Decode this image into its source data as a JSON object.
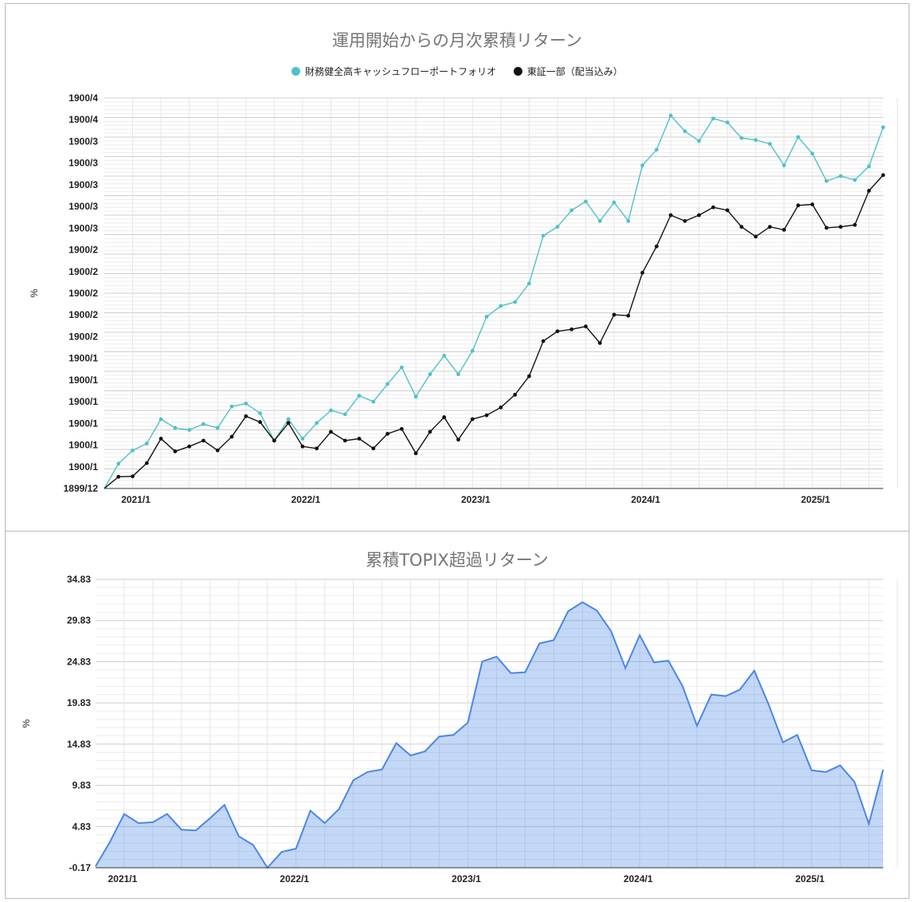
{
  "chart_data": [
    {
      "type": "line",
      "title": "運用開始からの月次累積リターン",
      "ylabel": "%",
      "y_tick_labels": [
        "1899/12",
        "1900/1",
        "1900/1",
        "1900/1",
        "1900/1",
        "1900/1",
        "1900/1",
        "1900/2",
        "1900/2",
        "1900/2",
        "1900/2",
        "1900/2",
        "1900/3",
        "1900/3",
        "1900/3",
        "1900/3",
        "1900/3",
        "1900/4",
        "1900/4"
      ],
      "x_tick_labels": [
        "2021/1",
        "2022/1",
        "2023/1",
        "2024/1",
        "2025/1"
      ],
      "x": [
        "2020/11",
        "2020/12",
        "2021/1",
        "2021/2",
        "2021/3",
        "2021/4",
        "2021/5",
        "2021/6",
        "2021/7",
        "2021/8",
        "2021/9",
        "2021/10",
        "2021/11",
        "2021/12",
        "2022/1",
        "2022/2",
        "2022/3",
        "2022/4",
        "2022/5",
        "2022/6",
        "2022/7",
        "2022/8",
        "2022/9",
        "2022/10",
        "2022/11",
        "2022/12",
        "2023/1",
        "2023/2",
        "2023/3",
        "2023/4",
        "2023/5",
        "2023/6",
        "2023/7",
        "2023/8",
        "2023/9",
        "2023/10",
        "2023/11",
        "2023/12",
        "2024/1",
        "2024/2",
        "2024/3",
        "2024/4",
        "2024/5",
        "2024/6",
        "2024/7",
        "2024/8",
        "2024/9",
        "2024/10",
        "2024/11",
        "2024/12",
        "2025/1",
        "2025/2",
        "2025/3",
        "2025/4",
        "2025/5",
        "2025/6"
      ],
      "ylim": [
        0,
        20
      ],
      "legend_position": "top",
      "series": [
        {
          "name": "財務健全高キャッシュフローポートフォリオ",
          "color": "#4fc1c9",
          "values": [
            0,
            1.27,
            1.95,
            2.3,
            3.55,
            3.1,
            3.0,
            3.3,
            3.1,
            4.2,
            4.35,
            3.85,
            2.45,
            3.55,
            2.55,
            3.35,
            4.0,
            3.8,
            4.75,
            4.45,
            5.35,
            6.2,
            4.7,
            5.85,
            6.8,
            5.85,
            7.05,
            8.8,
            9.35,
            9.55,
            10.5,
            12.95,
            13.4,
            14.25,
            14.7,
            13.7,
            14.65,
            13.7,
            16.55,
            17.35,
            19.1,
            18.3,
            17.8,
            18.95,
            18.75,
            17.95,
            17.85,
            17.65,
            16.55,
            18.0,
            17.15,
            15.75,
            16.0,
            15.8,
            16.5,
            18.5
          ]
        },
        {
          "name": "東証一部（配当込み）",
          "color": "#111111",
          "values": [
            0,
            0.6,
            0.62,
            1.3,
            2.55,
            1.9,
            2.15,
            2.45,
            1.95,
            2.65,
            3.7,
            3.4,
            2.45,
            3.35,
            2.15,
            2.05,
            2.9,
            2.45,
            2.55,
            2.05,
            2.8,
            3.05,
            1.8,
            2.9,
            3.65,
            2.5,
            3.55,
            3.75,
            4.15,
            4.8,
            5.75,
            7.55,
            8.05,
            8.15,
            8.3,
            7.45,
            8.9,
            8.85,
            11.05,
            12.4,
            14.0,
            13.7,
            14.0,
            14.4,
            14.25,
            13.4,
            12.9,
            13.4,
            13.25,
            14.5,
            14.55,
            13.35,
            13.4,
            13.5,
            15.25,
            16.05
          ]
        }
      ]
    },
    {
      "type": "area",
      "title": "累積TOPIX超過リターン",
      "ylabel": "%",
      "y_tick_labels": [
        "-0.17",
        "4.83",
        "9.83",
        "14.83",
        "19.83",
        "24.83",
        "29.83",
        "34.83"
      ],
      "x_tick_labels": [
        "2021/1",
        "2022/1",
        "2023/1",
        "2024/1",
        "2025/1"
      ],
      "ylim": [
        -0.17,
        34.83
      ],
      "color": "#4a86e8",
      "values": [
        0,
        2.95,
        6.35,
        5.25,
        5.35,
        6.35,
        4.45,
        4.35,
        5.85,
        7.45,
        3.65,
        2.6,
        -0.17,
        1.75,
        2.15,
        6.75,
        5.25,
        6.95,
        10.45,
        11.45,
        11.75,
        14.95,
        13.45,
        13.95,
        15.75,
        15.95,
        17.45,
        24.85,
        25.45,
        23.45,
        23.55,
        27.05,
        27.45,
        30.95,
        32.05,
        31.05,
        28.55,
        24.05,
        28.05,
        24.75,
        24.95,
        21.85,
        17.05,
        20.85,
        20.65,
        21.45,
        23.75,
        19.65,
        15.05,
        15.95,
        11.65,
        11.45,
        12.25,
        10.25,
        5.15,
        11.75
      ]
    }
  ]
}
